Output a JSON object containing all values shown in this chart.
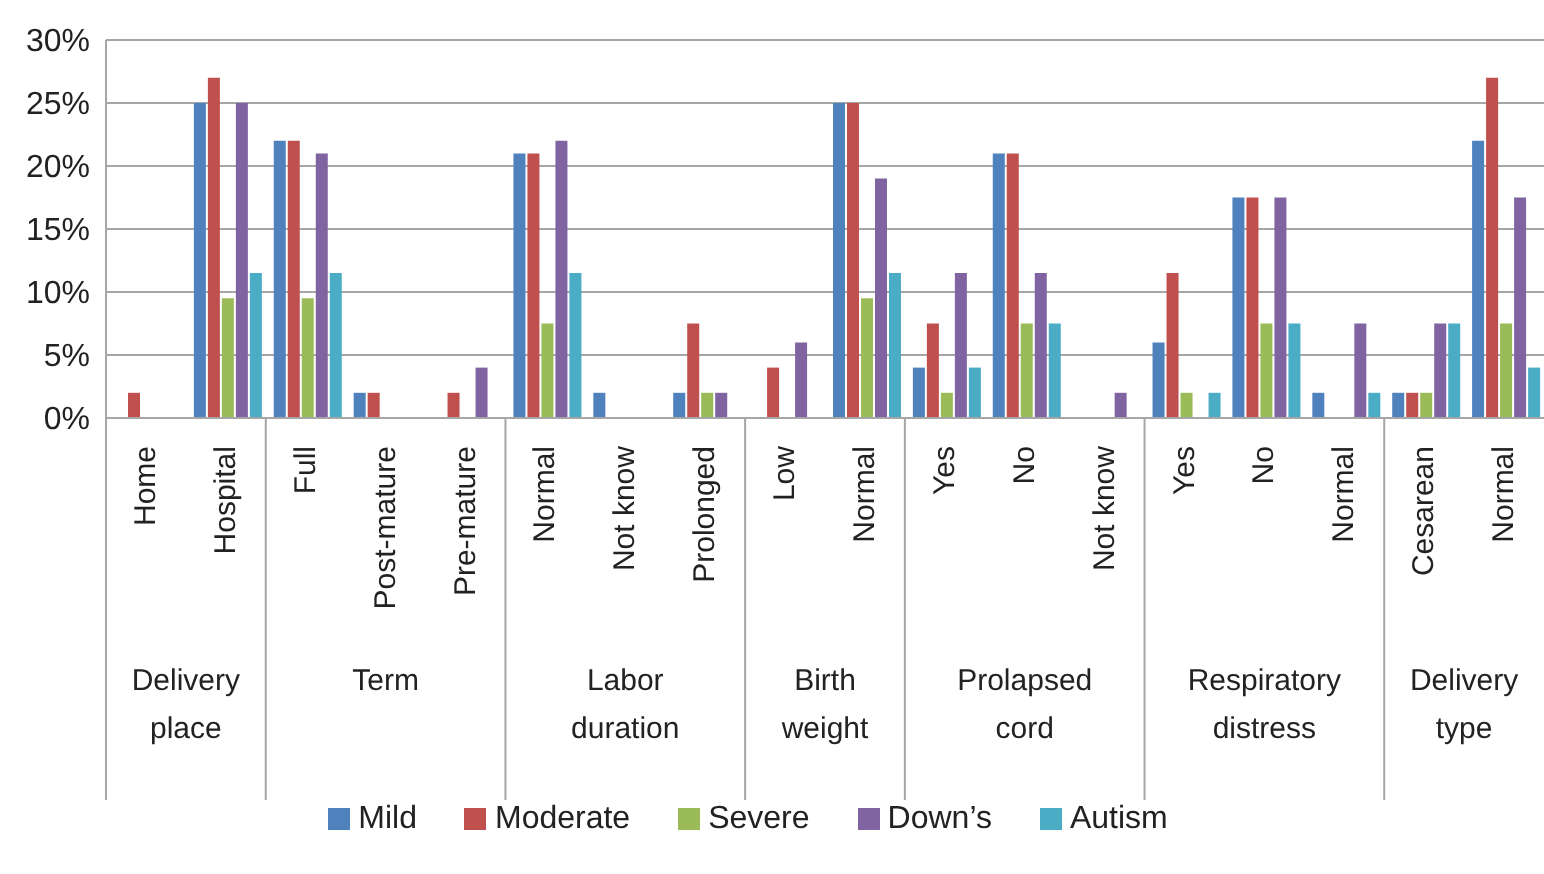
{
  "chart_data": {
    "type": "bar",
    "categories": [
      "Home",
      "Hospital",
      "Full",
      "Post-mature",
      "Pre-mature",
      "Normal",
      "Not know",
      "Prolonged",
      "Low",
      "Normal",
      "Yes",
      "No",
      "Not know",
      "Yes",
      "No",
      "Normal",
      "Cesarean",
      "Normal"
    ],
    "series": [
      {
        "name": "Mild",
        "color": "#4f81bd",
        "values": [
          0,
          25,
          22,
          2,
          0,
          21,
          2,
          2,
          0,
          25,
          4,
          21,
          0,
          6,
          17.5,
          2,
          2,
          22
        ]
      },
      {
        "name": "Moderate",
        "color": "#c0504d",
        "values": [
          2,
          27,
          22,
          2,
          2,
          21,
          0,
          7.5,
          4,
          25,
          7.5,
          21,
          0,
          11.5,
          17.5,
          0,
          2,
          27
        ]
      },
      {
        "name": "Severe",
        "color": "#9bbb59",
        "values": [
          0,
          9.5,
          9.5,
          0,
          0,
          7.5,
          0,
          2,
          0,
          9.5,
          2,
          7.5,
          0,
          2,
          7.5,
          0,
          2,
          7.5
        ]
      },
      {
        "name": "Down’s",
        "color": "#8064a2",
        "values": [
          0,
          25,
          21,
          0,
          4,
          22,
          0,
          2,
          6,
          19,
          11.5,
          11.5,
          2,
          0,
          17.5,
          7.5,
          7.5,
          17.5
        ]
      },
      {
        "name": "Autism",
        "color": "#4bacc6",
        "values": [
          0,
          11.5,
          11.5,
          0,
          0,
          11.5,
          0,
          0,
          0,
          11.5,
          4,
          7.5,
          0,
          2,
          7.5,
          2,
          7.5,
          4
        ]
      }
    ],
    "ylim": [
      0,
      30
    ],
    "yticks": [
      {
        "value": 0,
        "label": "0%"
      },
      {
        "value": 5,
        "label": "5%"
      },
      {
        "value": 10,
        "label": "10%"
      },
      {
        "value": 15,
        "label": "15%"
      },
      {
        "value": 20,
        "label": "20%"
      },
      {
        "value": 25,
        "label": "25%"
      },
      {
        "value": 30,
        "label": "30%"
      }
    ],
    "grid": "y",
    "legend": "bottom",
    "annotations": [
      "Delivery place",
      "Term",
      "Labor duration",
      "Birth weight",
      "Prolapsed cord",
      "Respiratory distress",
      "Delivery type"
    ]
  }
}
